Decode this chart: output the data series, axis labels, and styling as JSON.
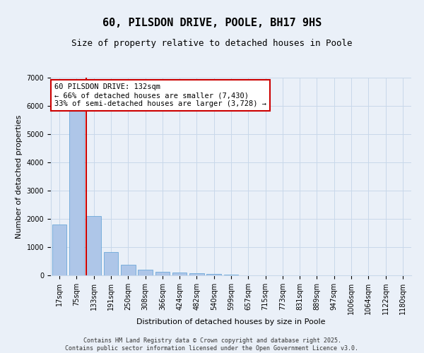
{
  "title": "60, PILSDON DRIVE, POOLE, BH17 9HS",
  "subtitle": "Size of property relative to detached houses in Poole",
  "xlabel": "Distribution of detached houses by size in Poole",
  "ylabel": "Number of detached properties",
  "footnote1": "Contains HM Land Registry data © Crown copyright and database right 2025.",
  "footnote2": "Contains public sector information licensed under the Open Government Licence v3.0.",
  "categories": [
    "17sqm",
    "75sqm",
    "133sqm",
    "191sqm",
    "250sqm",
    "308sqm",
    "366sqm",
    "424sqm",
    "482sqm",
    "540sqm",
    "599sqm",
    "657sqm",
    "715sqm",
    "773sqm",
    "831sqm",
    "889sqm",
    "947sqm",
    "1006sqm",
    "1064sqm",
    "1122sqm",
    "1180sqm"
  ],
  "values": [
    1800,
    5820,
    2100,
    820,
    370,
    210,
    120,
    90,
    80,
    55,
    30,
    0,
    0,
    0,
    0,
    0,
    0,
    0,
    0,
    0,
    0
  ],
  "bar_color": "#aec6e8",
  "bar_edge_color": "#5a9fd4",
  "highlight_line_color": "#cc0000",
  "highlight_line_index": 2,
  "annotation_line1": "60 PILSDON DRIVE: 132sqm",
  "annotation_line2": "← 66% of detached houses are smaller (7,430)",
  "annotation_line3": "33% of semi-detached houses are larger (3,728) →",
  "annotation_box_color": "#ffffff",
  "annotation_box_edge_color": "#cc0000",
  "ylim": [
    0,
    7000
  ],
  "yticks": [
    0,
    1000,
    2000,
    3000,
    4000,
    5000,
    6000,
    7000
  ],
  "bg_color": "#eaf0f8",
  "plot_bg_color": "#eaf0f8",
  "grid_color": "#c8d8ea",
  "title_fontsize": 11,
  "subtitle_fontsize": 9,
  "axis_label_fontsize": 8,
  "tick_fontsize": 7,
  "annotation_fontsize": 7.5
}
